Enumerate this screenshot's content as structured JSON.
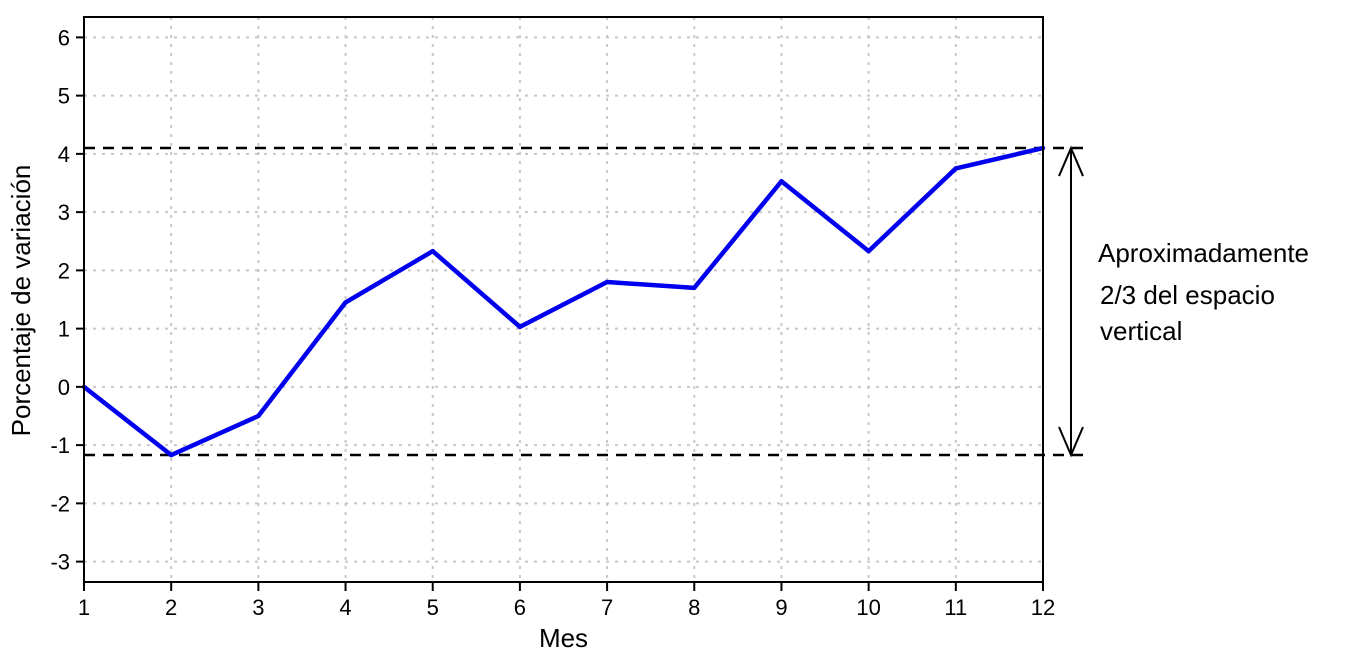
{
  "chart_data": {
    "type": "line",
    "xlabel": "Mes",
    "ylabel": "Porcentaje de variación",
    "x": [
      1,
      2,
      3,
      4,
      5,
      6,
      7,
      8,
      9,
      10,
      11,
      12
    ],
    "xlim": [
      1,
      12
    ],
    "ylim": [
      -3.35,
      6.35
    ],
    "x_ticks": [
      "1",
      "2",
      "3",
      "4",
      "5",
      "6",
      "7",
      "8",
      "9",
      "10",
      "11",
      "12"
    ],
    "y_ticks": [
      "6",
      "5",
      "4",
      "3",
      "2",
      "1",
      "0",
      "-1",
      "-2",
      "-3"
    ],
    "grid": true,
    "series": [
      {
        "color": "#0000ee",
        "values": [
          0.0,
          -1.17,
          -0.5,
          1.45,
          2.33,
          1.03,
          1.8,
          1.7,
          3.53,
          2.33,
          3.75,
          4.1
        ]
      }
    ],
    "reference_lines": [
      4.1,
      -1.17
    ],
    "annotation": {
      "lines": [
        "Aproximadamente",
        "2/3 del espacio",
        "vertical"
      ],
      "from": 4.1,
      "to": -1.17
    }
  }
}
